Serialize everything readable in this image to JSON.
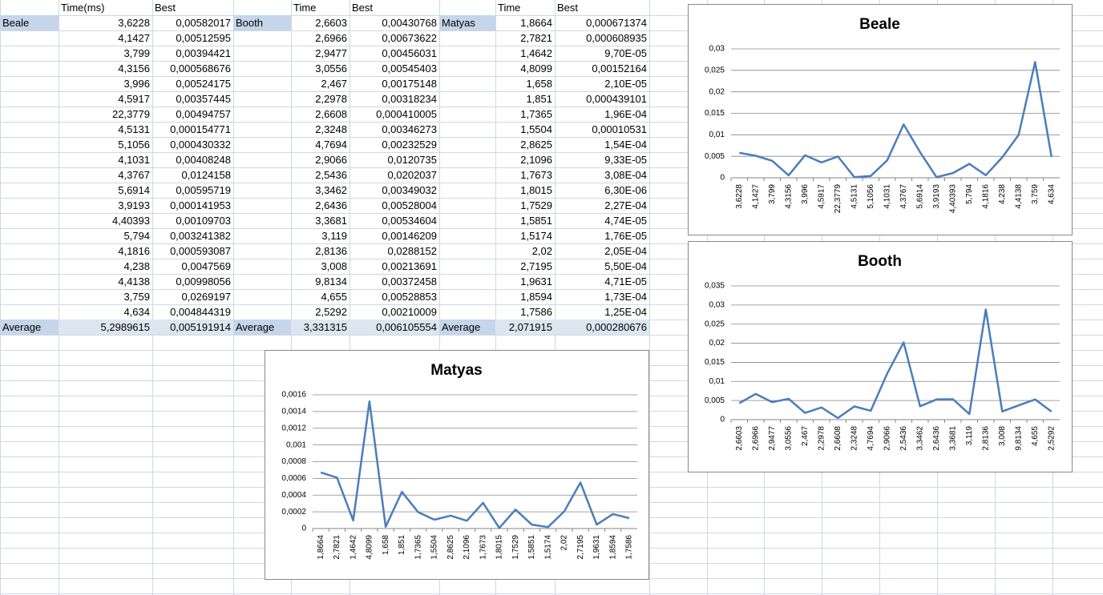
{
  "sheet": {
    "blocks": [
      {
        "name": "Beale",
        "headers": [
          "Time(ms)",
          "Best"
        ],
        "rows": [
          [
            "3,6228",
            "0,00582017"
          ],
          [
            "4,1427",
            "0,00512595"
          ],
          [
            "3,799",
            "0,00394421"
          ],
          [
            "4,3156",
            "0,000568676"
          ],
          [
            "3,996",
            "0,00524175"
          ],
          [
            "4,5917",
            "0,00357445"
          ],
          [
            "22,3779",
            "0,00494757"
          ],
          [
            "4,5131",
            "0,000154771"
          ],
          [
            "5,1056",
            "0,000430332"
          ],
          [
            "4,1031",
            "0,00408248"
          ],
          [
            "4,3767",
            "0,0124158"
          ],
          [
            "5,6914",
            "0,00595719"
          ],
          [
            "3,9193",
            "0,000141953"
          ],
          [
            "4,40393",
            "0,00109703"
          ],
          [
            "5,794",
            "0,003241382"
          ],
          [
            "4,1816",
            "0,000593087"
          ],
          [
            "4,238",
            "0,0047569"
          ],
          [
            "4,4138",
            "0,00998056"
          ],
          [
            "3,759",
            "0,0269197"
          ],
          [
            "4,634",
            "0,004844319"
          ]
        ],
        "average": [
          "Average",
          "5,2989615",
          "0,005191914"
        ]
      },
      {
        "name": "Booth",
        "headers": [
          "Time",
          "Best"
        ],
        "rows": [
          [
            "2,6603",
            "0,00430768"
          ],
          [
            "2,6966",
            "0,00673622"
          ],
          [
            "2,9477",
            "0,00456031"
          ],
          [
            "3,0556",
            "0,00545403"
          ],
          [
            "2,467",
            "0,00175148"
          ],
          [
            "2,2978",
            "0,00318234"
          ],
          [
            "2,6608",
            "0,000410005"
          ],
          [
            "2,3248",
            "0,00346273"
          ],
          [
            "4,7694",
            "0,00232529"
          ],
          [
            "2,9066",
            "0,0120735"
          ],
          [
            "2,5436",
            "0,0202037"
          ],
          [
            "3,3462",
            "0,00349032"
          ],
          [
            "2,6436",
            "0,00528004"
          ],
          [
            "3,3681",
            "0,00534604"
          ],
          [
            "3,119",
            "0,00146209"
          ],
          [
            "2,8136",
            "0,0288152"
          ],
          [
            "3,008",
            "0,00213691"
          ],
          [
            "9,8134",
            "0,00372458"
          ],
          [
            "4,655",
            "0,00528853"
          ],
          [
            "2,5292",
            "0,00210009"
          ]
        ],
        "average": [
          "Average",
          "3,331315",
          "0,006105554"
        ]
      },
      {
        "name": "Matyas",
        "headers": [
          "Time",
          "Best"
        ],
        "rows": [
          [
            "1,8664",
            "0,000671374"
          ],
          [
            "2,7821",
            "0,000608935"
          ],
          [
            "1,4642",
            "9,70E-05"
          ],
          [
            "4,8099",
            "0,00152164"
          ],
          [
            "1,658",
            "2,10E-05"
          ],
          [
            "1,851",
            "0,000439101"
          ],
          [
            "1,7365",
            "1,96E-04"
          ],
          [
            "1,5504",
            "0,00010531"
          ],
          [
            "2,8625",
            "1,54E-04"
          ],
          [
            "2,1096",
            "9,33E-05"
          ],
          [
            "1,7673",
            "3,08E-04"
          ],
          [
            "1,8015",
            "6,30E-06"
          ],
          [
            "1,7529",
            "2,27E-04"
          ],
          [
            "1,5851",
            "4,74E-05"
          ],
          [
            "1,5174",
            "1,76E-05"
          ],
          [
            "2,02",
            "2,05E-04"
          ],
          [
            "2,7195",
            "5,50E-04"
          ],
          [
            "1,9631",
            "4,71E-05"
          ],
          [
            "1,8594",
            "1,73E-04"
          ],
          [
            "1,7586",
            "1,25E-04"
          ]
        ],
        "average": [
          "Average",
          "2,071915",
          "0,000280676"
        ]
      }
    ]
  },
  "chart_data": [
    {
      "type": "line",
      "title": "Beale",
      "color": "#4a7ebb",
      "grid": true,
      "categories": [
        "3,6228",
        "4,1427",
        "3,799",
        "4,3156",
        "3,996",
        "4,5917",
        "22,3779",
        "4,5131",
        "5,1056",
        "4,1031",
        "4,3767",
        "5,6914",
        "3,9193",
        "4,40393",
        "5,794",
        "4,1816",
        "4,238",
        "4,4138",
        "3,759",
        "4,634"
      ],
      "values": [
        0.00582017,
        0.00512595,
        0.00394421,
        0.000568676,
        0.00524175,
        0.00357445,
        0.00494757,
        0.000154771,
        0.000430332,
        0.00408248,
        0.0124158,
        0.00595719,
        0.000141953,
        0.00109703,
        0.003241382,
        0.000593087,
        0.0047569,
        0.00998056,
        0.0269197,
        0.004844319
      ],
      "ylim": [
        0,
        0.03
      ],
      "yticks": [
        0,
        {
          "value": 0.005,
          "label": "0,005"
        },
        {
          "value": 0.01,
          "label": "0,01"
        },
        {
          "value": 0.015,
          "label": "0,015"
        },
        {
          "value": 0.02,
          "label": "0,02"
        },
        {
          "value": 0.025,
          "label": "0,025"
        },
        {
          "value": 0.03,
          "label": "0,03"
        }
      ]
    },
    {
      "type": "line",
      "title": "Booth",
      "color": "#4a7ebb",
      "grid": true,
      "categories": [
        "2,6603",
        "2,6966",
        "2,9477",
        "3,0556",
        "2,467",
        "2,2978",
        "2,6608",
        "2,3248",
        "4,7694",
        "2,9066",
        "2,5436",
        "3,3462",
        "2,6436",
        "3,3681",
        "3,119",
        "2,8136",
        "3,008",
        "9,8134",
        "4,655",
        "2,5292"
      ],
      "values": [
        0.00430768,
        0.00673622,
        0.00456031,
        0.00545403,
        0.00175148,
        0.00318234,
        0.000410005,
        0.00346273,
        0.00232529,
        0.0120735,
        0.0202037,
        0.00349032,
        0.00528004,
        0.00534604,
        0.00146209,
        0.0288152,
        0.00213691,
        0.00372458,
        0.00528853,
        0.00210009
      ],
      "ylim": [
        0,
        0.035
      ],
      "yticks": [
        0,
        {
          "value": 0.005,
          "label": "0,005"
        },
        {
          "value": 0.01,
          "label": "0,01"
        },
        {
          "value": 0.015,
          "label": "0,015"
        },
        {
          "value": 0.02,
          "label": "0,02"
        },
        {
          "value": 0.025,
          "label": "0,025"
        },
        {
          "value": 0.03,
          "label": "0,03"
        },
        {
          "value": 0.035,
          "label": "0,035"
        }
      ]
    },
    {
      "type": "line",
      "title": "Matyas",
      "color": "#4a7ebb",
      "grid": true,
      "categories": [
        "1,8664",
        "2,7821",
        "1,4642",
        "4,8099",
        "1,658",
        "1,851",
        "1,7365",
        "1,5504",
        "2,8625",
        "2,1096",
        "1,7673",
        "1,8015",
        "1,7529",
        "1,5851",
        "1,5174",
        "2,02",
        "2,7195",
        "1,9631",
        "1,8594",
        "1,7586"
      ],
      "values": [
        0.000671374,
        0.000608935,
        9.7e-05,
        0.00152164,
        2.1e-05,
        0.000439101,
        0.000196,
        0.00010531,
        0.000154,
        9.33e-05,
        0.000308,
        6.3e-06,
        0.000227,
        4.74e-05,
        1.76e-05,
        0.000205,
        0.00055,
        4.71e-05,
        0.000173,
        0.000125
      ],
      "ylim": [
        0,
        0.0016
      ],
      "yticks": [
        0,
        {
          "value": 0.0002,
          "label": "0,0002"
        },
        {
          "value": 0.0004,
          "label": "0,0004"
        },
        {
          "value": 0.0006,
          "label": "0,0006"
        },
        {
          "value": 0.0008,
          "label": "0,0008"
        },
        {
          "value": 0.001,
          "label": "0,001"
        },
        {
          "value": 0.0012,
          "label": "0,0012"
        },
        {
          "value": 0.0014,
          "label": "0,0014"
        },
        {
          "value": 0.0016,
          "label": "0,0016"
        }
      ]
    }
  ]
}
